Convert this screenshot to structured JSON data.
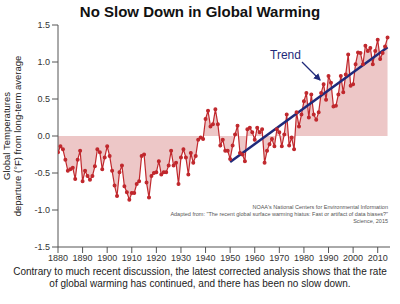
{
  "chart_data": {
    "type": "line",
    "title": "No Slow Down in Global Warming",
    "ylabel": [
      "Global Temperatures",
      "departure (°F) from long-term average"
    ],
    "caption": "Contrary to much recent discussion, the latest corrected analysis shows that the rate of global warming has continued, and there has been no slow down.",
    "annotations": [
      "NOAA's National Centers for Environmental Information",
      "Adapted from: \"The recent global surface warming hiatus: Fast or artifact of data biases?\"",
      "Science, 2015"
    ],
    "xlim": [
      1880,
      2015
    ],
    "xticks": [
      1880,
      1890,
      1900,
      1910,
      1920,
      1930,
      1940,
      1950,
      1960,
      1970,
      1980,
      1990,
      2000,
      2010
    ],
    "ylim": [
      -1.5,
      1.5
    ],
    "yticks": [
      -1.5,
      {
        "value": -1.0,
        "label": "-1.0"
      },
      -0.5,
      {
        "value": 0,
        "label": "0.0"
      },
      0.5,
      {
        "value": 1.0,
        "label": "1.0"
      },
      1.5
    ],
    "grid": false,
    "x": [
      1880,
      1881,
      1882,
      1883,
      1884,
      1885,
      1886,
      1887,
      1888,
      1889,
      1890,
      1891,
      1892,
      1893,
      1894,
      1895,
      1896,
      1897,
      1898,
      1899,
      1900,
      1901,
      1902,
      1903,
      1904,
      1905,
      1906,
      1907,
      1908,
      1909,
      1910,
      1911,
      1912,
      1913,
      1914,
      1915,
      1916,
      1917,
      1918,
      1919,
      1920,
      1921,
      1922,
      1923,
      1924,
      1925,
      1926,
      1927,
      1928,
      1929,
      1930,
      1931,
      1932,
      1933,
      1934,
      1935,
      1936,
      1937,
      1938,
      1939,
      1940,
      1941,
      1942,
      1943,
      1944,
      1945,
      1946,
      1947,
      1948,
      1949,
      1950,
      1951,
      1952,
      1953,
      1954,
      1955,
      1956,
      1957,
      1958,
      1959,
      1960,
      1961,
      1962,
      1963,
      1964,
      1965,
      1966,
      1967,
      1968,
      1969,
      1970,
      1971,
      1972,
      1973,
      1974,
      1975,
      1976,
      1977,
      1978,
      1979,
      1980,
      1981,
      1982,
      1983,
      1984,
      1985,
      1986,
      1987,
      1988,
      1989,
      1990,
      1991,
      1992,
      1993,
      1994,
      1995,
      1996,
      1997,
      1998,
      1999,
      2000,
      2001,
      2002,
      2003,
      2004,
      2005,
      2006,
      2007,
      2008,
      2009,
      2010,
      2011,
      2012,
      2013,
      2014
    ],
    "series": [
      {
        "type": "line",
        "color": "#c0282d",
        "marker": "circle",
        "values": [
          -0.22,
          -0.14,
          -0.18,
          -0.32,
          -0.47,
          -0.45,
          -0.43,
          -0.58,
          -0.32,
          -0.2,
          -0.61,
          -0.47,
          -0.54,
          -0.59,
          -0.54,
          -0.41,
          -0.18,
          -0.22,
          -0.45,
          -0.29,
          -0.14,
          -0.27,
          -0.47,
          -0.67,
          -0.81,
          -0.49,
          -0.4,
          -0.68,
          -0.76,
          -0.86,
          -0.77,
          -0.77,
          -0.65,
          -0.61,
          -0.27,
          -0.25,
          -0.63,
          -0.83,
          -0.54,
          -0.5,
          -0.49,
          -0.34,
          -0.52,
          -0.49,
          -0.49,
          -0.4,
          -0.2,
          -0.4,
          -0.36,
          -0.65,
          -0.29,
          -0.18,
          -0.29,
          -0.52,
          -0.23,
          -0.36,
          -0.27,
          -0.05,
          -0.02,
          -0.04,
          0.23,
          0.34,
          0.13,
          0.16,
          0.36,
          0.16,
          -0.13,
          -0.05,
          -0.2,
          -0.2,
          -0.31,
          -0.13,
          0.02,
          0.14,
          -0.23,
          -0.25,
          -0.34,
          0.09,
          0.11,
          0.05,
          -0.05,
          0.11,
          0.05,
          0.09,
          -0.36,
          -0.2,
          -0.11,
          -0.04,
          -0.14,
          0.09,
          0.05,
          -0.14,
          0.02,
          0.29,
          -0.13,
          -0.02,
          -0.18,
          0.32,
          0.13,
          0.29,
          0.47,
          0.58,
          0.25,
          0.56,
          0.29,
          0.22,
          0.32,
          0.58,
          0.7,
          0.49,
          0.81,
          0.72,
          0.4,
          0.41,
          0.56,
          0.81,
          0.59,
          0.83,
          1.1,
          0.68,
          0.7,
          0.97,
          1.13,
          1.12,
          0.97,
          1.22,
          1.15,
          1.19,
          0.97,
          1.15,
          1.3,
          1.04,
          1.12,
          1.21,
          1.33
        ]
      },
      {
        "name": "Trend",
        "type": "line",
        "color": "#1f2a7a",
        "line_style": "solid",
        "x": [
          1950,
          2014
        ],
        "values": [
          -0.35,
          1.2
        ]
      }
    ]
  }
}
